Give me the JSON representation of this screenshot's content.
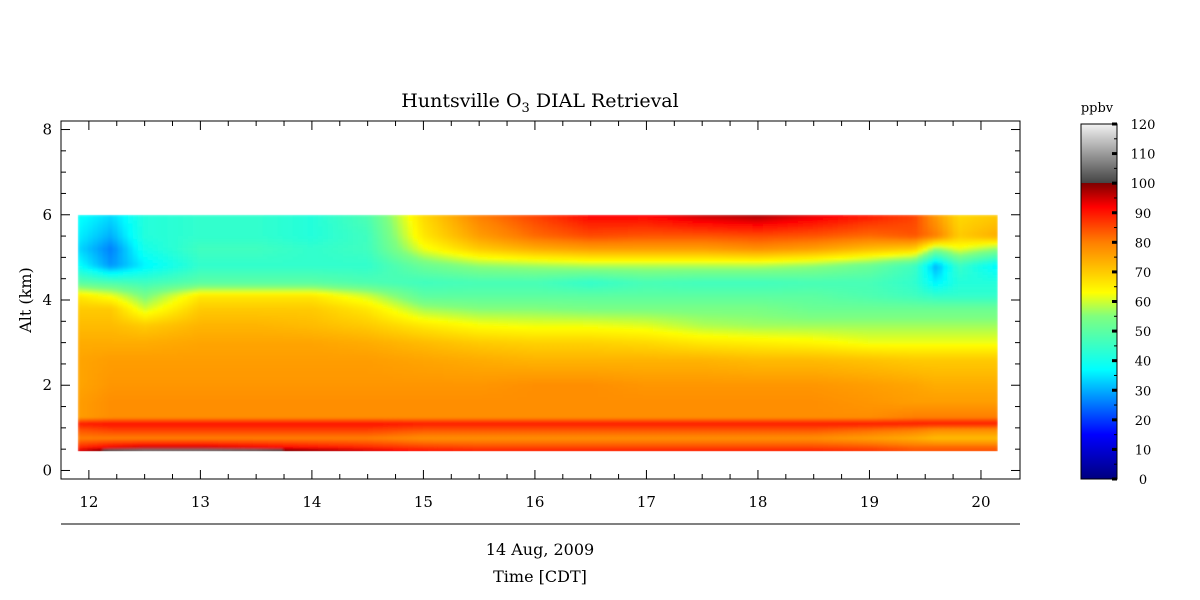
{
  "chart_data": {
    "type": "heatmap",
    "title": {
      "main": "Huntsville O",
      "sub": "3",
      "rest": " DIAL Retrieval"
    },
    "xlabel_date": "14 Aug, 2009",
    "xlabel": "Time [CDT]",
    "ylabel": "Alt (km)",
    "xlim": [
      11.75,
      20.35
    ],
    "ylim": [
      -0.2,
      8.2
    ],
    "x_ticks": [
      "12",
      "13",
      "14",
      "15",
      "16",
      "17",
      "18",
      "19",
      "20"
    ],
    "y_ticks": [
      "0",
      "2",
      "4",
      "6",
      "8"
    ],
    "data_extent": {
      "x": [
        11.9,
        20.15
      ],
      "y": [
        0.45,
        6.0
      ]
    },
    "colorbar": {
      "label": "ppbv",
      "range": [
        0,
        120
      ],
      "ticks": [
        "0",
        "10",
        "20",
        "30",
        "40",
        "50",
        "60",
        "70",
        "80",
        "90",
        "100",
        "110",
        "120"
      ]
    },
    "color_scale": [
      {
        "value": 0,
        "color": "#00007f"
      },
      {
        "value": 15,
        "color": "#0000ff"
      },
      {
        "value": 37,
        "color": "#00ffff"
      },
      {
        "value": 55,
        "color": "#7fff7f"
      },
      {
        "value": 63,
        "color": "#ffff00"
      },
      {
        "value": 80,
        "color": "#ff7f00"
      },
      {
        "value": 92,
        "color": "#ff0000"
      },
      {
        "value": 100,
        "color": "#7f0000"
      },
      {
        "value": 100.01,
        "color": "#444444"
      },
      {
        "value": 120,
        "color": "#f2f2f2"
      }
    ],
    "grid": {
      "x": [
        11.9,
        12.2,
        12.5,
        13.0,
        13.5,
        14.0,
        14.5,
        15.0,
        15.5,
        16.0,
        16.5,
        17.0,
        17.5,
        18.0,
        18.5,
        19.0,
        19.4,
        19.6,
        19.8,
        20.15
      ],
      "y": [
        0.45,
        0.55,
        0.75,
        0.95,
        1.1,
        1.25,
        1.6,
        2.0,
        2.6,
        3.0,
        3.4,
        3.8,
        4.1,
        4.4,
        4.8,
        5.2,
        5.5,
        6.0
      ],
      "z": [
        [
          95,
          105,
          108,
          108,
          106,
          100,
          96,
          92,
          90,
          90,
          90,
          90,
          90,
          90,
          90,
          88,
          85,
          85,
          85,
          85
        ],
        [
          88,
          92,
          94,
          94,
          92,
          90,
          88,
          86,
          85,
          85,
          85,
          85,
          85,
          85,
          85,
          84,
          82,
          82,
          82,
          82
        ],
        [
          80,
          80,
          80,
          80,
          80,
          80,
          80,
          78,
          78,
          78,
          78,
          78,
          78,
          78,
          78,
          76,
          74,
          72,
          72,
          72
        ],
        [
          84,
          86,
          86,
          86,
          86,
          86,
          86,
          84,
          84,
          84,
          84,
          84,
          84,
          84,
          84,
          82,
          80,
          78,
          78,
          78
        ],
        [
          90,
          91,
          91,
          91,
          91,
          91,
          91,
          90,
          90,
          90,
          90,
          90,
          90,
          90,
          90,
          90,
          90,
          90,
          90,
          90
        ],
        [
          76,
          78,
          78,
          78,
          78,
          78,
          78,
          78,
          78,
          78,
          78,
          78,
          78,
          78,
          78,
          78,
          80,
          80,
          80,
          80
        ],
        [
          76,
          78,
          78,
          78,
          78,
          78,
          78,
          78,
          78,
          78,
          78,
          78,
          78,
          78,
          78,
          77,
          76,
          76,
          76,
          76
        ],
        [
          75,
          77,
          77,
          77,
          77,
          77,
          77,
          77,
          77,
          78,
          78,
          77,
          77,
          77,
          77,
          76,
          75,
          74,
          74,
          74
        ],
        [
          75,
          76,
          76,
          76,
          76,
          76,
          76,
          75,
          74,
          73,
          73,
          73,
          73,
          72,
          72,
          71,
          70,
          70,
          70,
          70
        ],
        [
          74,
          74,
          74,
          75,
          75,
          75,
          74,
          72,
          70,
          69,
          69,
          68,
          66,
          65,
          64,
          62,
          62,
          62,
          62,
          62
        ],
        [
          72,
          72,
          70,
          73,
          73,
          72,
          70,
          66,
          63,
          62,
          62,
          61,
          58,
          57,
          57,
          57,
          57,
          57,
          57,
          57
        ],
        [
          70,
          70,
          60,
          70,
          70,
          70,
          66,
          57,
          55,
          55,
          54,
          54,
          54,
          54,
          52,
          52,
          52,
          52,
          52,
          52
        ],
        [
          66,
          62,
          54,
          66,
          66,
          66,
          60,
          50,
          50,
          50,
          50,
          50,
          50,
          50,
          50,
          48,
          46,
          44,
          44,
          44
        ],
        [
          50,
          48,
          46,
          50,
          50,
          50,
          48,
          46,
          47,
          47,
          44,
          47,
          46,
          46,
          47,
          47,
          44,
          36,
          42,
          42
        ],
        [
          38,
          28,
          36,
          44,
          44,
          44,
          44,
          52,
          56,
          57,
          58,
          58,
          58,
          58,
          56,
          52,
          46,
          30,
          45,
          36
        ],
        [
          34,
          26,
          40,
          46,
          46,
          44,
          46,
          62,
          70,
          74,
          76,
          76,
          76,
          78,
          76,
          72,
          70,
          56,
          62,
          56
        ],
        [
          36,
          30,
          42,
          44,
          44,
          42,
          46,
          66,
          76,
          82,
          85,
          84,
          84,
          85,
          84,
          82,
          84,
          80,
          70,
          74
        ],
        [
          38,
          34,
          42,
          44,
          44,
          42,
          48,
          68,
          80,
          86,
          92,
          92,
          96,
          98,
          94,
          90,
          86,
          76,
          68,
          70
        ]
      ]
    }
  }
}
